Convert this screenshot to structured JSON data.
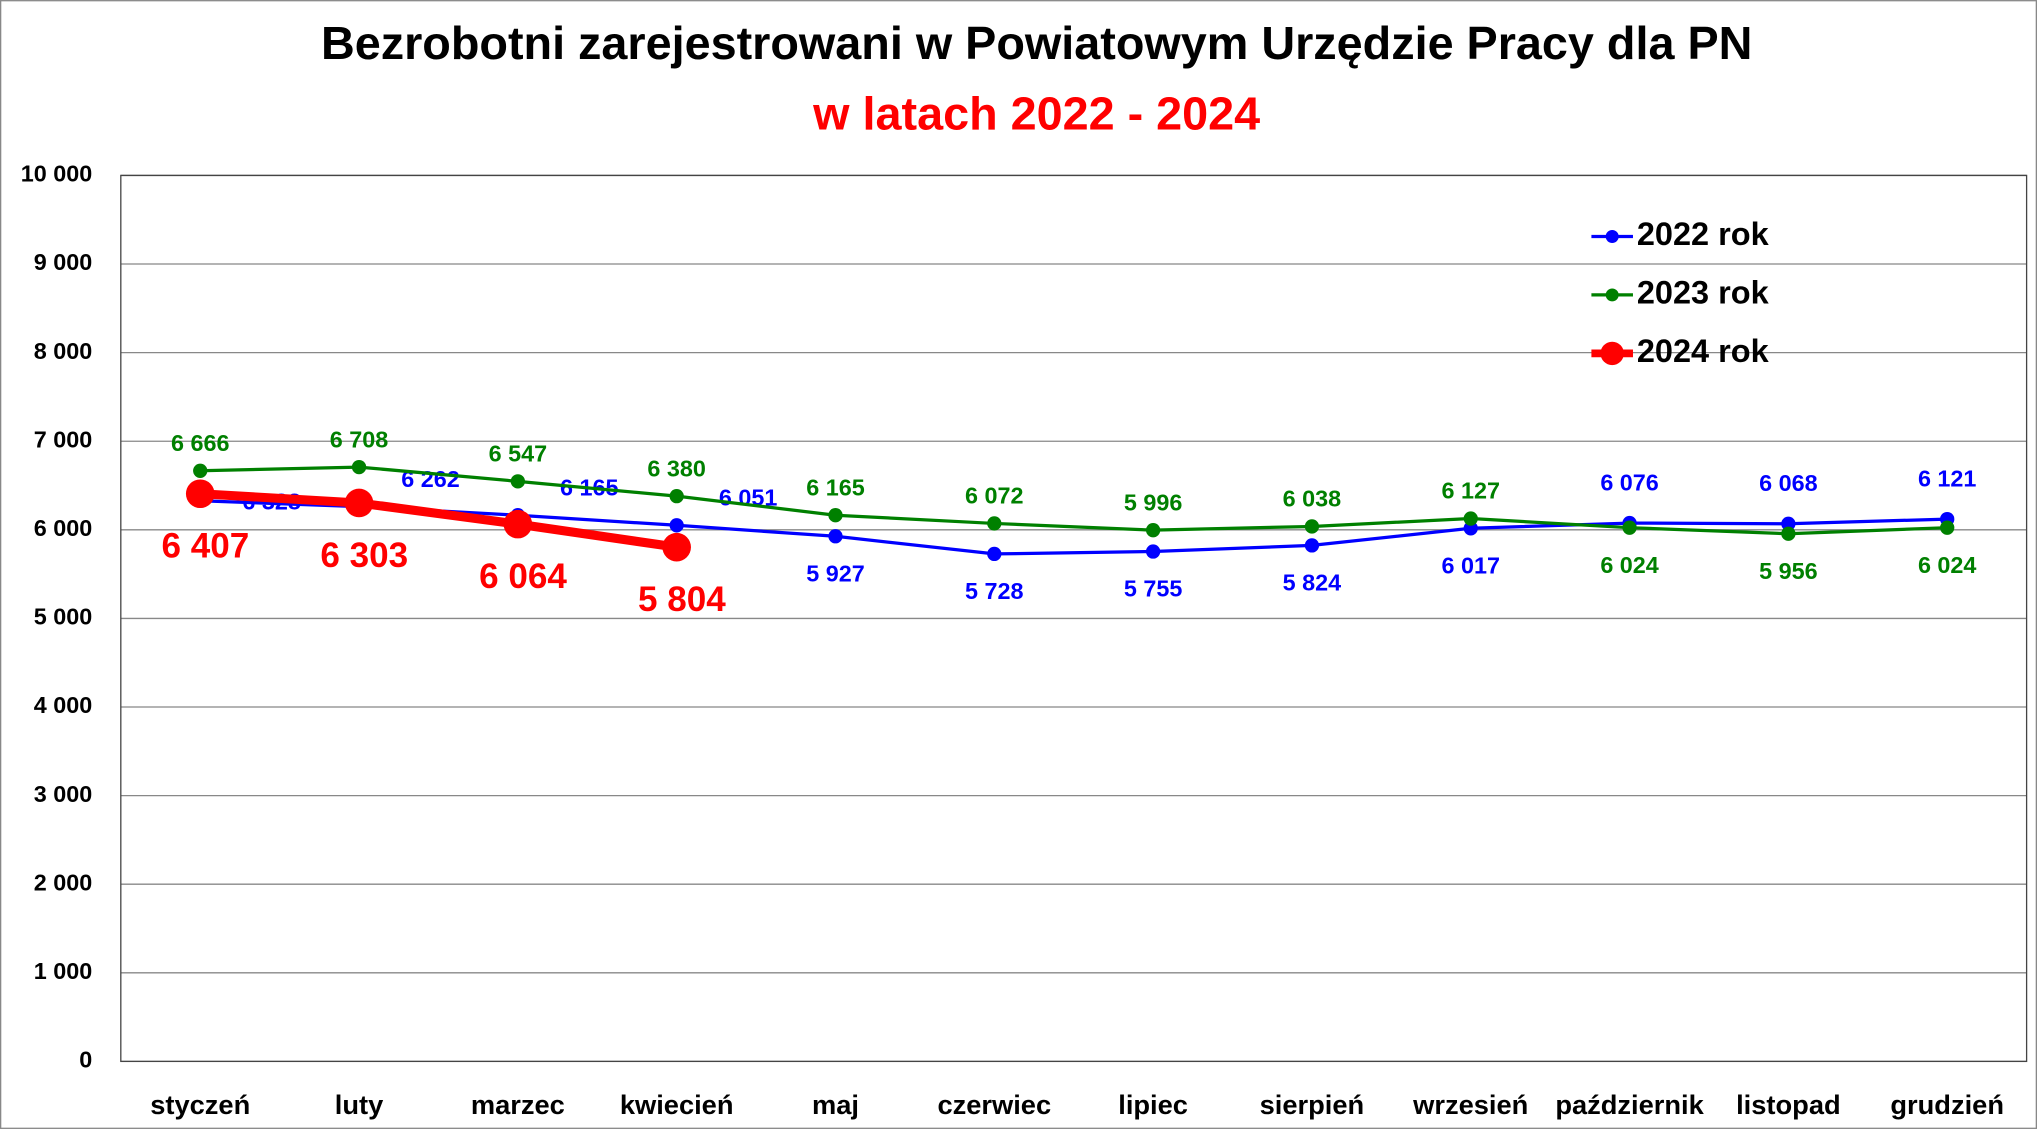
{
  "chart_data": {
    "type": "line",
    "title": "Bezrobotni zarejestrowani w Powiatowym Urzędzie Pracy dla PN",
    "subtitle": "w latach 2022 - 2024",
    "categories": [
      "styczeń",
      "luty",
      "marzec",
      "kwiecień",
      "maj",
      "czerwiec",
      "lipiec",
      "sierpień",
      "wrzesień",
      "październik",
      "listopad",
      "grudzień"
    ],
    "series": [
      {
        "name": "2022 rok",
        "color": "#0000ff",
        "values": [
          6328,
          6262,
          6165,
          6051,
          5927,
          5728,
          5755,
          5824,
          6017,
          6076,
          6068,
          6121
        ],
        "value_labels": [
          "6 328",
          "6 262",
          "6 165",
          "6 051",
          "5 927",
          "5 728",
          "5 755",
          "5 824",
          "6 017",
          "6 076",
          "6 068",
          "6 121"
        ]
      },
      {
        "name": "2023 rok",
        "color": "#008000",
        "values": [
          6666,
          6708,
          6547,
          6380,
          6165,
          6072,
          5996,
          6038,
          6127,
          6024,
          5956,
          6024
        ],
        "value_labels": [
          "6 666",
          "6 708",
          "6 547",
          "6 380",
          "6 165",
          "6 072",
          "5 996",
          "6 038",
          "6 127",
          "6 024",
          "5 956",
          "6 024"
        ]
      },
      {
        "name": "2024 rok",
        "color": "#ff0000",
        "values": [
          6407,
          6303,
          6064,
          5804,
          null,
          null,
          null,
          null,
          null,
          null,
          null,
          null
        ],
        "value_labels": [
          "6 407",
          "6 303",
          "6 064",
          "5 804",
          null,
          null,
          null,
          null,
          null,
          null,
          null,
          null
        ]
      }
    ],
    "ylim": [
      0,
      10000
    ],
    "yticks": [
      0,
      {
        "value": 1000,
        "label": "1 000"
      },
      {
        "value": 2000,
        "label": "2 000"
      },
      {
        "value": 3000,
        "label": "3 000"
      },
      {
        "value": 4000,
        "label": "4 000"
      },
      {
        "value": 5000,
        "label": "5 000"
      },
      {
        "value": 6000,
        "label": "6 000"
      },
      {
        "value": 7000,
        "label": "7 000"
      },
      {
        "value": 8000,
        "label": "8 000"
      },
      {
        "value": 9000,
        "label": "9 000"
      },
      {
        "value": 10000,
        "label": "10 000"
      }
    ],
    "grid": true,
    "legend": "top-right"
  }
}
